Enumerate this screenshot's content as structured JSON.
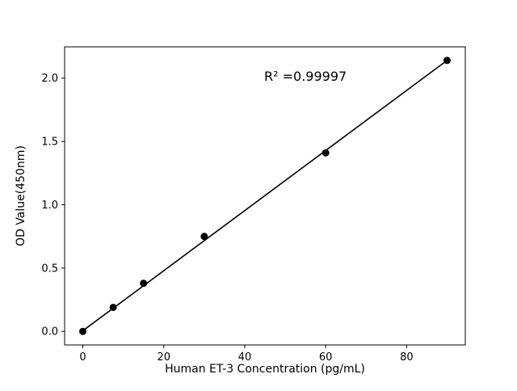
{
  "chart_data": {
    "type": "scatter",
    "title": "",
    "xlabel": "Human ET-3 Concentration (pg/mL)",
    "ylabel": "OD Value(450nm)",
    "points": {
      "x": [
        0,
        7.5,
        15,
        30,
        60,
        90
      ],
      "y": [
        0.0,
        0.19,
        0.38,
        0.75,
        1.41,
        2.14
      ]
    },
    "fit_line": {
      "x": [
        0,
        90
      ],
      "y": [
        0.005,
        2.14
      ]
    },
    "annotation": {
      "text": "R² =0.99997",
      "x": 55,
      "y": 1.98
    },
    "xlim": [
      -4.5,
      94.5
    ],
    "ylim": [
      -0.107,
      2.247
    ],
    "xticks": [
      0,
      20,
      40,
      60,
      80
    ],
    "xtick_labels": [
      "0",
      "20",
      "40",
      "60",
      "80"
    ],
    "yticks": [
      0.0,
      0.5,
      1.0,
      1.5,
      2.0
    ],
    "ytick_labels": [
      "0.0",
      "0.5",
      "1.0",
      "1.5",
      "2.0"
    ],
    "grid": false,
    "legend_position": "none",
    "marker_color": "#000000",
    "line_color": "#000000",
    "background_color": "#ffffff",
    "axis_color": "#000000"
  }
}
